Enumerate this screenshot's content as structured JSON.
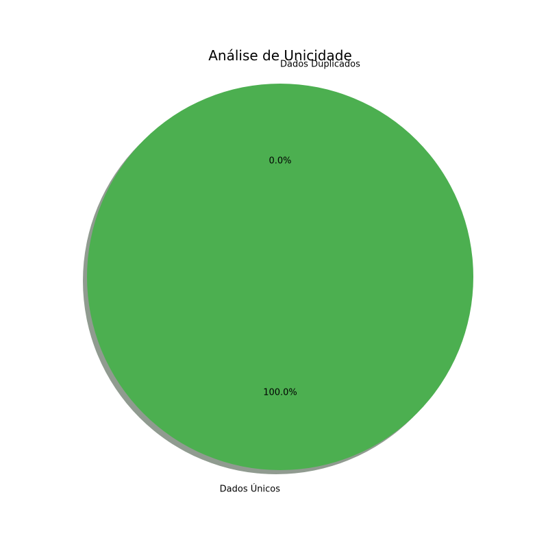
{
  "chart_data": {
    "type": "pie",
    "title": "Análise de Unicidade",
    "labels": [
      "Dados Únicos",
      "Dados Duplicados"
    ],
    "values": [
      100.0,
      0.0
    ],
    "percent_labels": [
      "100.0%",
      "0.0%"
    ],
    "colors": [
      "#4caf50",
      "#f44336"
    ],
    "shadow": true,
    "start_angle_deg": 90,
    "legend": "none"
  }
}
